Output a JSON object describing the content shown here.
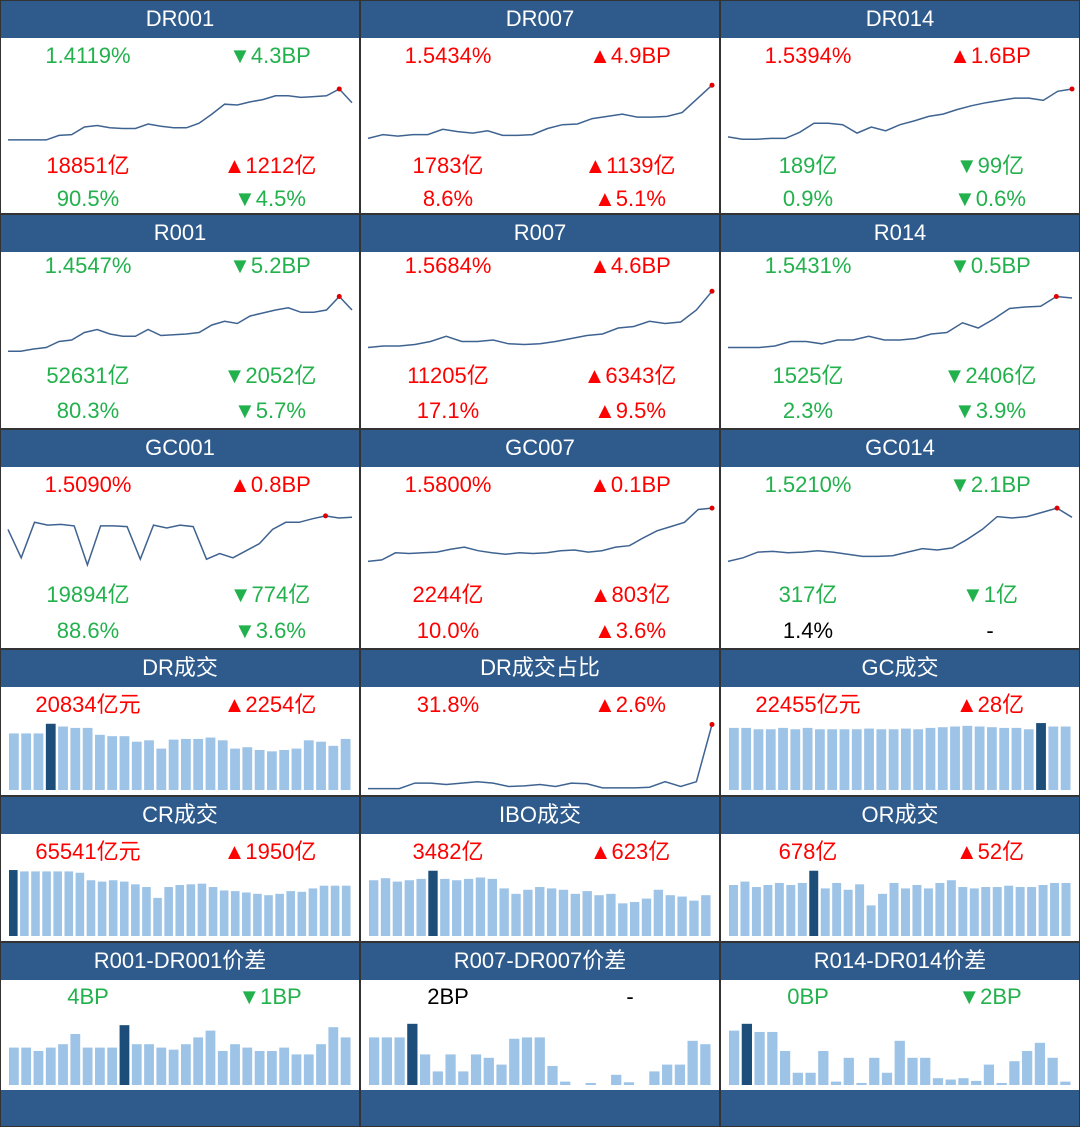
{
  "panels": [
    {
      "title": "DR001",
      "metrics": [
        [
          {
            "text": "1.4119%",
            "color": "#22b14c"
          },
          {
            "text": "▼4.3BP",
            "color": "#22b14c"
          }
        ],
        [
          {
            "text": "18851亿",
            "color": "#ff0000"
          },
          {
            "text": "▲1212亿",
            "color": "#ff0000"
          }
        ],
        [
          {
            "text": "90.5%",
            "color": "#22b14c"
          },
          {
            "text": "▼4.5%",
            "color": "#22b14c"
          }
        ]
      ],
      "chart": {
        "type": "line",
        "ylim": [
          0,
          100
        ],
        "values": [
          8,
          8,
          8,
          8,
          14,
          15,
          25,
          27,
          24,
          23,
          23,
          29,
          26,
          24,
          24,
          30,
          42,
          55,
          54,
          58,
          61,
          66,
          66,
          64,
          65,
          66,
          75,
          57
        ]
      }
    },
    {
      "title": "DR007",
      "metrics": [
        [
          {
            "text": "1.5434%",
            "color": "#ff0000"
          },
          {
            "text": "▲4.9BP",
            "color": "#ff0000"
          }
        ],
        [
          {
            "text": "1783亿",
            "color": "#ff0000"
          },
          {
            "text": "▲1139亿",
            "color": "#ff0000"
          }
        ],
        [
          {
            "text": "8.6%",
            "color": "#ff0000"
          },
          {
            "text": "▲5.1%",
            "color": "#ff0000"
          }
        ]
      ],
      "chart": {
        "type": "line",
        "ylim": [
          0,
          100
        ],
        "values": [
          10,
          15,
          13,
          15,
          15,
          22,
          19,
          17,
          20,
          14,
          14,
          15,
          23,
          28,
          29,
          36,
          39,
          42,
          38,
          38,
          39,
          44,
          62,
          80
        ]
      }
    },
    {
      "title": "DR014",
      "metrics": [
        [
          {
            "text": "1.5394%",
            "color": "#ff0000"
          },
          {
            "text": "▲1.6BP",
            "color": "#ff0000"
          }
        ],
        [
          {
            "text": "189亿",
            "color": "#22b14c"
          },
          {
            "text": "▼99亿",
            "color": "#22b14c"
          }
        ],
        [
          {
            "text": "0.9%",
            "color": "#22b14c"
          },
          {
            "text": "▼0.6%",
            "color": "#22b14c"
          }
        ]
      ],
      "chart": {
        "type": "line",
        "ylim": [
          0,
          100
        ],
        "values": [
          12,
          9,
          9,
          10,
          10,
          18,
          30,
          30,
          28,
          17,
          25,
          20,
          28,
          33,
          39,
          42,
          48,
          53,
          57,
          60,
          63,
          63,
          60,
          72,
          75
        ]
      }
    },
    {
      "title": "R001",
      "metrics": [
        [
          {
            "text": "1.4547%",
            "color": "#22b14c"
          },
          {
            "text": "▼5.2BP",
            "color": "#22b14c"
          }
        ],
        [
          {
            "text": "52631亿",
            "color": "#22b14c"
          },
          {
            "text": "▼2052亿",
            "color": "#22b14c"
          }
        ],
        [
          {
            "text": "80.3%",
            "color": "#22b14c"
          },
          {
            "text": "▼5.7%",
            "color": "#22b14c"
          }
        ]
      ],
      "chart": {
        "type": "line",
        "ylim": [
          0,
          100
        ],
        "values": [
          5,
          5,
          8,
          10,
          18,
          20,
          30,
          34,
          28,
          25,
          25,
          34,
          26,
          27,
          28,
          30,
          40,
          45,
          42,
          52,
          56,
          60,
          63,
          57,
          57,
          60,
          78,
          60
        ]
      }
    },
    {
      "title": "R007",
      "metrics": [
        [
          {
            "text": "1.5684%",
            "color": "#ff0000"
          },
          {
            "text": "▲4.6BP",
            "color": "#ff0000"
          }
        ],
        [
          {
            "text": "11205亿",
            "color": "#ff0000"
          },
          {
            "text": "▲6343亿",
            "color": "#ff0000"
          }
        ],
        [
          {
            "text": "17.1%",
            "color": "#ff0000"
          },
          {
            "text": "▲9.5%",
            "color": "#ff0000"
          }
        ]
      ],
      "chart": {
        "type": "line",
        "ylim": [
          0,
          100
        ],
        "values": [
          10,
          12,
          12,
          14,
          18,
          25,
          18,
          18,
          20,
          15,
          14,
          15,
          18,
          22,
          26,
          28,
          36,
          38,
          45,
          42,
          44,
          60,
          85
        ]
      }
    },
    {
      "title": "R014",
      "metrics": [
        [
          {
            "text": "1.5431%",
            "color": "#22b14c"
          },
          {
            "text": "▼0.5BP",
            "color": "#22b14c"
          }
        ],
        [
          {
            "text": "1525亿",
            "color": "#22b14c"
          },
          {
            "text": "▼2406亿",
            "color": "#22b14c"
          }
        ],
        [
          {
            "text": "2.3%",
            "color": "#22b14c"
          },
          {
            "text": "▼3.9%",
            "color": "#22b14c"
          }
        ]
      ],
      "chart": {
        "type": "line",
        "ylim": [
          0,
          100
        ],
        "values": [
          10,
          10,
          10,
          12,
          18,
          18,
          15,
          20,
          20,
          25,
          20,
          20,
          22,
          28,
          30,
          43,
          36,
          48,
          62,
          64,
          65,
          78,
          76
        ]
      }
    },
    {
      "title": "GC001",
      "metrics": [
        [
          {
            "text": "1.5090%",
            "color": "#ff0000"
          },
          {
            "text": "▲0.8BP",
            "color": "#ff0000"
          }
        ],
        [
          {
            "text": "19894亿",
            "color": "#22b14c"
          },
          {
            "text": "▼774亿",
            "color": "#22b14c"
          }
        ],
        [
          {
            "text": "88.6%",
            "color": "#22b14c"
          },
          {
            "text": "▼3.6%",
            "color": "#22b14c"
          }
        ]
      ],
      "chart": {
        "type": "line",
        "ylim": [
          0,
          100
        ],
        "values": [
          60,
          20,
          70,
          66,
          67,
          65,
          10,
          65,
          65,
          64,
          18,
          66,
          62,
          66,
          64,
          18,
          26,
          20,
          30,
          40,
          60,
          70,
          70,
          75,
          79,
          76,
          77
        ]
      }
    },
    {
      "title": "GC007",
      "metrics": [
        [
          {
            "text": "1.5800%",
            "color": "#ff0000"
          },
          {
            "text": "▲0.1BP",
            "color": "#ff0000"
          }
        ],
        [
          {
            "text": "2244亿",
            "color": "#ff0000"
          },
          {
            "text": "▲803亿",
            "color": "#ff0000"
          }
        ],
        [
          {
            "text": "10.0%",
            "color": "#ff0000"
          },
          {
            "text": "▲3.6%",
            "color": "#ff0000"
          }
        ]
      ],
      "chart": {
        "type": "line",
        "ylim": [
          0,
          100
        ],
        "values": [
          15,
          17,
          27,
          26,
          27,
          28,
          32,
          35,
          30,
          27,
          25,
          27,
          26,
          27,
          30,
          31,
          28,
          30,
          35,
          37,
          48,
          58,
          64,
          70,
          88,
          90
        ]
      }
    },
    {
      "title": "GC014",
      "metrics": [
        [
          {
            "text": "1.5210%",
            "color": "#22b14c"
          },
          {
            "text": "▼2.1BP",
            "color": "#22b14c"
          }
        ],
        [
          {
            "text": "317亿",
            "color": "#22b14c"
          },
          {
            "text": "▼1亿",
            "color": "#22b14c"
          }
        ],
        [
          {
            "text": "1.4%",
            "color": "#000000"
          },
          {
            "text": "-",
            "color": "#000000"
          }
        ]
      ],
      "chart": {
        "type": "line",
        "ylim": [
          0,
          100
        ],
        "values": [
          15,
          20,
          28,
          29,
          27,
          28,
          30,
          28,
          25,
          22,
          22,
          23,
          28,
          33,
          31,
          34,
          46,
          60,
          78,
          76,
          78,
          84,
          90,
          77
        ]
      }
    },
    {
      "title": "DR成交",
      "metrics": [
        [
          {
            "text": "20834亿元",
            "color": "#ff0000"
          },
          {
            "text": "▲2254亿",
            "color": "#ff0000"
          }
        ]
      ],
      "chart": {
        "type": "bar",
        "ylim": [
          0,
          100
        ],
        "values": [
          82,
          82,
          82,
          96,
          92,
          90,
          90,
          80,
          78,
          78,
          70,
          72,
          60,
          73,
          74,
          74,
          76,
          72,
          60,
          62,
          58,
          56,
          58,
          60,
          72,
          70,
          64,
          74
        ]
      }
    },
    {
      "title": "DR成交占比",
      "metrics": [
        [
          {
            "text": "31.8%",
            "color": "#ff0000"
          },
          {
            "text": "▲2.6%",
            "color": "#ff0000"
          }
        ]
      ],
      "chart": {
        "type": "line",
        "ylim": [
          0,
          100
        ],
        "values": [
          2,
          2,
          2,
          10,
          10,
          8,
          10,
          12,
          10,
          5,
          6,
          8,
          5,
          10,
          9,
          3,
          3,
          3,
          4,
          12,
          5,
          12,
          95
        ]
      }
    },
    {
      "title": "GC成交",
      "metrics": [
        [
          {
            "text": "22455亿元",
            "color": "#ff0000"
          },
          {
            "text": "▲28亿",
            "color": "#ff0000"
          }
        ]
      ],
      "chart": {
        "type": "bar",
        "ylim": [
          0,
          100
        ],
        "values": [
          90,
          90,
          88,
          88,
          90,
          88,
          90,
          88,
          88,
          88,
          88,
          89,
          88,
          88,
          89,
          88,
          90,
          91,
          92,
          93,
          92,
          91,
          90,
          90,
          88,
          97,
          92,
          92
        ]
      }
    },
    {
      "title": "CR成交",
      "metrics": [
        [
          {
            "text": "65541亿元",
            "color": "#ff0000"
          },
          {
            "text": "▲1950亿",
            "color": "#ff0000"
          }
        ]
      ],
      "chart": {
        "type": "bar",
        "ylim": [
          0,
          100
        ],
        "values": [
          97,
          95,
          95,
          95,
          95,
          95,
          93,
          82,
          80,
          82,
          80,
          76,
          72,
          56,
          72,
          75,
          76,
          77,
          72,
          67,
          66,
          64,
          62,
          60,
          62,
          66,
          65,
          70,
          74,
          74,
          74
        ]
      }
    },
    {
      "title": "IBO成交",
      "metrics": [
        [
          {
            "text": "3482亿",
            "color": "#ff0000"
          },
          {
            "text": "▲623亿",
            "color": "#ff0000"
          }
        ]
      ],
      "chart": {
        "type": "bar",
        "ylim": [
          0,
          100
        ],
        "values": [
          82,
          85,
          80,
          82,
          84,
          96,
          84,
          82,
          84,
          86,
          84,
          70,
          62,
          68,
          72,
          70,
          68,
          62,
          66,
          60,
          62,
          48,
          50,
          55,
          68,
          60,
          58,
          52,
          60
        ]
      }
    },
    {
      "title": "OR成交",
      "metrics": [
        [
          {
            "text": "678亿",
            "color": "#ff0000"
          },
          {
            "text": "▲52亿",
            "color": "#ff0000"
          }
        ]
      ],
      "chart": {
        "type": "bar",
        "ylim": [
          0,
          100
        ],
        "values": [
          75,
          80,
          72,
          75,
          78,
          75,
          78,
          96,
          70,
          78,
          68,
          76,
          45,
          62,
          78,
          70,
          75,
          70,
          78,
          82,
          72,
          70,
          72,
          72,
          74,
          72,
          72,
          75,
          78,
          78
        ]
      }
    },
    {
      "title": "R001-DR001价差",
      "metrics": [
        [
          {
            "text": "4BP",
            "color": "#22b14c"
          },
          {
            "text": "▼1BP",
            "color": "#22b14c"
          }
        ]
      ],
      "chart": {
        "type": "bar",
        "ylim": [
          0,
          100
        ],
        "values": [
          55,
          55,
          50,
          55,
          60,
          75,
          55,
          55,
          55,
          88,
          60,
          60,
          55,
          52,
          60,
          70,
          80,
          50,
          60,
          55,
          50,
          50,
          55,
          45,
          45,
          60,
          85,
          70
        ]
      }
    },
    {
      "title": "R007-DR007价差",
      "metrics": [
        [
          {
            "text": "2BP",
            "color": "#000000"
          },
          {
            "text": "-",
            "color": "#000000"
          }
        ]
      ],
      "chart": {
        "type": "bar",
        "ylim": [
          0,
          100
        ],
        "values": [
          70,
          70,
          70,
          90,
          45,
          20,
          45,
          20,
          45,
          40,
          30,
          68,
          70,
          70,
          28,
          5,
          0,
          3,
          0,
          15,
          4,
          0,
          20,
          30,
          30,
          65,
          60
        ]
      }
    },
    {
      "title": "R014-DR014价差",
      "metrics": [
        [
          {
            "text": "0BP",
            "color": "#22b14c"
          },
          {
            "text": "▼2BP",
            "color": "#22b14c"
          }
        ]
      ],
      "chart": {
        "type": "bar",
        "ylim": [
          0,
          100
        ],
        "values": [
          80,
          90,
          78,
          78,
          50,
          18,
          18,
          50,
          5,
          40,
          3,
          40,
          18,
          65,
          40,
          40,
          10,
          8,
          10,
          6,
          30,
          3,
          35,
          50,
          62,
          40,
          5
        ]
      }
    }
  ]
}
